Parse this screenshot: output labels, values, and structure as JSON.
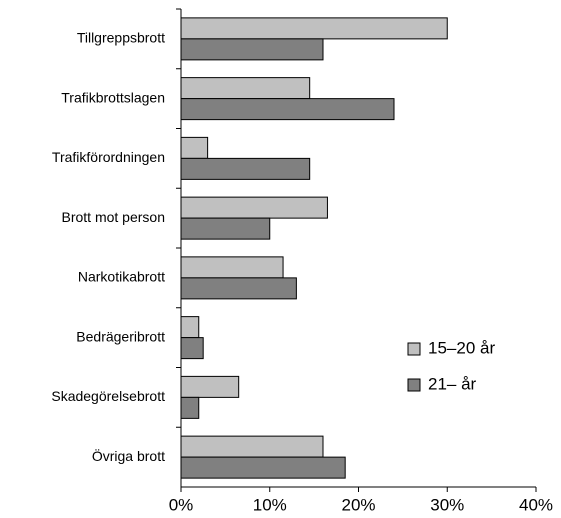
{
  "chart_data": {
    "type": "hbar",
    "categories": [
      "Tillgreppsbrott",
      "Trafikbrottslagen",
      "Trafikförordningen",
      "Brott mot person",
      "Narkotikabrott",
      "Bedrägeribrott",
      "Skadegörelsebrott",
      "Övriga brott"
    ],
    "series": [
      {
        "name": "15–20 år",
        "color": "#c0c0c0",
        "values": [
          30,
          14.5,
          3,
          16.5,
          11.5,
          2,
          6.5,
          16
        ]
      },
      {
        "name": "21– år",
        "color": "#808080",
        "values": [
          16,
          24,
          14.5,
          10,
          13,
          2.5,
          2,
          18.5
        ]
      }
    ],
    "xlim": [
      0,
      40
    ],
    "xticks": [
      {
        "value": 0,
        "label": "0%"
      },
      {
        "value": 10,
        "label": "10%"
      },
      {
        "value": 20,
        "label": "20%"
      },
      {
        "value": 30,
        "label": "30%"
      },
      {
        "value": 40,
        "label": "40%"
      }
    ],
    "grid": false,
    "legend": "right"
  }
}
